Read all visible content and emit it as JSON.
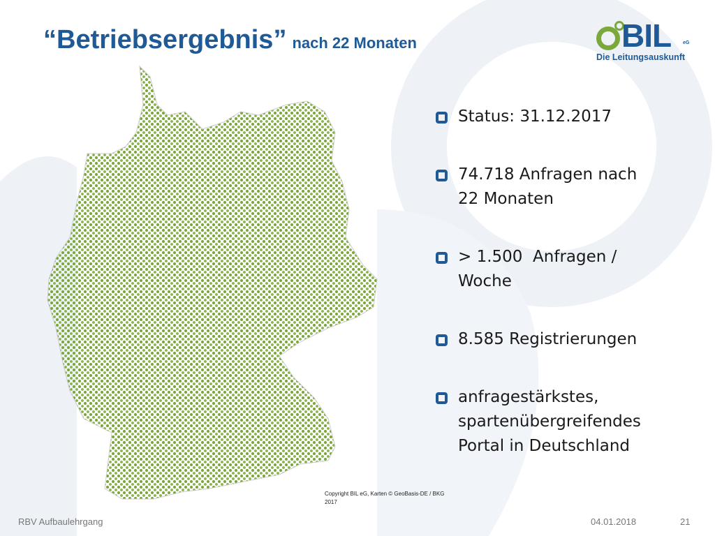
{
  "header": {
    "title": "“Betriebsergebnis”",
    "subtitle": "nach 22 Monaten"
  },
  "logo": {
    "name": "BIL",
    "suffix": "eG",
    "tagline": "Die Leitungsauskunft"
  },
  "bullets": [
    "Status: 31.12.2017",
    "74.718 Anfragen nach 22 Monaten",
    "> 1.500  Anfragen / Woche",
    "8.585 Registrierungen",
    "anfragestärkstes, spartenübergreifendes Portal in Deutschland"
  ],
  "map": {
    "copyright": "Copyright BIL eG, Karten © GeoBasis-DE / BKG 2017"
  },
  "footer": {
    "left": "RBV Aufbaulehrgang",
    "date": "04.01.2018",
    "page": "21"
  }
}
